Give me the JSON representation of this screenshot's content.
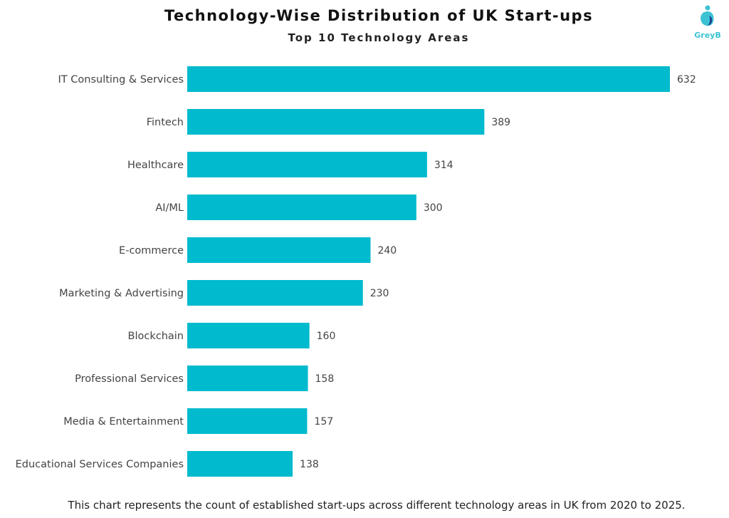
{
  "logo_text": "GreyB",
  "chart_data": {
    "type": "bar",
    "orientation": "horizontal",
    "title": "Technology-Wise Distribution of UK Start-ups",
    "subtitle": "Top 10 Technology Areas",
    "categories": [
      "IT Consulting & Services",
      "Fintech",
      "Healthcare",
      "AI/ML",
      "E-commerce",
      "Marketing & Advertising",
      "Blockchain",
      "Professional Services",
      "Media & Entertainment",
      "Educational Services Companies"
    ],
    "values": [
      632,
      389,
      314,
      300,
      240,
      230,
      160,
      158,
      157,
      138
    ],
    "xlim": [
      0,
      632
    ],
    "grid": false,
    "data_labels": true,
    "bar_color": "#00BACE",
    "footnote": "This chart represents the count of established start-ups across different technology areas in UK from 2020 to 2025."
  }
}
